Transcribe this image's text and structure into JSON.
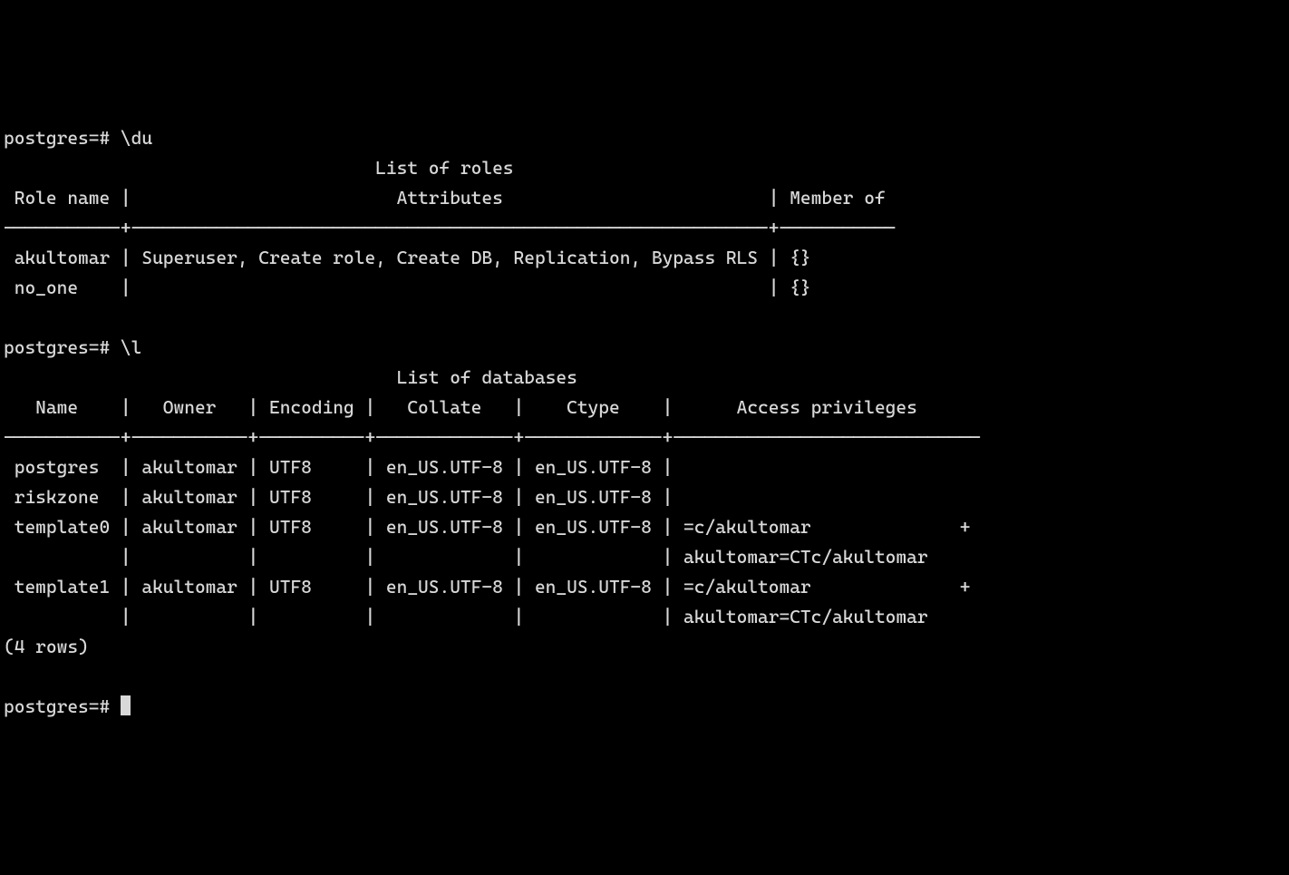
{
  "prompt": "postgres=# ",
  "commands": {
    "du": "\\du",
    "l": "\\l"
  },
  "roles": {
    "title": "List of roles",
    "headers": {
      "role_name": "Role name",
      "attributes": "Attributes",
      "member_of": "Member of"
    },
    "separator": "-----------+------------------------------------------------------------+-----------",
    "rows": [
      {
        "name": "akultomar",
        "attributes": "Superuser, Create role, Create DB, Replication, Bypass RLS",
        "member_of": "{}"
      },
      {
        "name": "no_one",
        "attributes": "",
        "member_of": "{}"
      }
    ]
  },
  "databases": {
    "title": "List of databases",
    "headers": {
      "name": "Name",
      "owner": "Owner",
      "encoding": "Encoding",
      "collate": "Collate",
      "ctype": "Ctype",
      "access": "Access privileges"
    },
    "separator": "-----------+-----------+----------+-------------+-------------+-----------------------------",
    "rows": [
      {
        "name": "postgres",
        "owner": "akultomar",
        "encoding": "UTF8",
        "collate": "en_US.UTF-8",
        "ctype": "en_US.UTF-8",
        "access_lines": [
          ""
        ]
      },
      {
        "name": "riskzone",
        "owner": "akultomar",
        "encoding": "UTF8",
        "collate": "en_US.UTF-8",
        "ctype": "en_US.UTF-8",
        "access_lines": [
          ""
        ]
      },
      {
        "name": "template0",
        "owner": "akultomar",
        "encoding": "UTF8",
        "collate": "en_US.UTF-8",
        "ctype": "en_US.UTF-8",
        "access_lines": [
          "=c/akultomar              +",
          "akultomar=CTc/akultomar"
        ]
      },
      {
        "name": "template1",
        "owner": "akultomar",
        "encoding": "UTF8",
        "collate": "en_US.UTF-8",
        "ctype": "en_US.UTF-8",
        "access_lines": [
          "=c/akultomar              +",
          "akultomar=CTc/akultomar"
        ]
      }
    ],
    "footer": "(4 rows)"
  },
  "colors": {
    "background": "#000000",
    "foreground": "#d8d8d8"
  },
  "layout": {
    "col_widths_roles": {
      "name": 11,
      "attributes": 60,
      "member_of": 11
    },
    "col_widths_dbs": {
      "name": 11,
      "owner": 11,
      "encoding": 10,
      "collate": 13,
      "ctype": 13,
      "access": 29
    }
  }
}
